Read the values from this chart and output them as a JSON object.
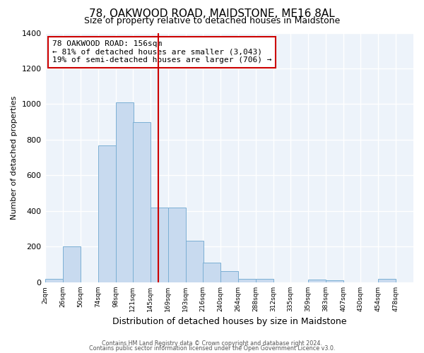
{
  "title": "78, OAKWOOD ROAD, MAIDSTONE, ME16 8AL",
  "subtitle": "Size of property relative to detached houses in Maidstone",
  "xlabel": "Distribution of detached houses by size in Maidstone",
  "ylabel": "Number of detached properties",
  "bar_left_edges": [
    2,
    26,
    50,
    74,
    98,
    121,
    145,
    169,
    193,
    216,
    240,
    264,
    288,
    312,
    335,
    359,
    383,
    407,
    430,
    454
  ],
  "bar_heights": [
    20,
    200,
    0,
    770,
    1010,
    900,
    420,
    420,
    235,
    110,
    65,
    20,
    20,
    0,
    0,
    15,
    10,
    0,
    0,
    20
  ],
  "bar_color": "#c8daef",
  "bar_edgecolor": "#7bafd4",
  "tick_labels": [
    "2sqm",
    "26sqm",
    "50sqm",
    "74sqm",
    "98sqm",
    "121sqm",
    "145sqm",
    "169sqm",
    "193sqm",
    "216sqm",
    "240sqm",
    "264sqm",
    "288sqm",
    "312sqm",
    "335sqm",
    "359sqm",
    "383sqm",
    "407sqm",
    "430sqm",
    "454sqm",
    "478sqm"
  ],
  "vline_x": 156,
  "vline_color": "#cc0000",
  "ylim": [
    0,
    1400
  ],
  "yticks": [
    0,
    200,
    400,
    600,
    800,
    1000,
    1200,
    1400
  ],
  "annotation_title": "78 OAKWOOD ROAD: 156sqm",
  "annotation_line1": "← 81% of detached houses are smaller (3,043)",
  "annotation_line2": "19% of semi-detached houses are larger (706) →",
  "footer1": "Contains HM Land Registry data © Crown copyright and database right 2024.",
  "footer2": "Contains public sector information licensed under the Open Government Licence v3.0.",
  "background_color": "#ffffff",
  "grid_color": "#dce8f5",
  "xlim_left": 2,
  "xlim_right": 502
}
